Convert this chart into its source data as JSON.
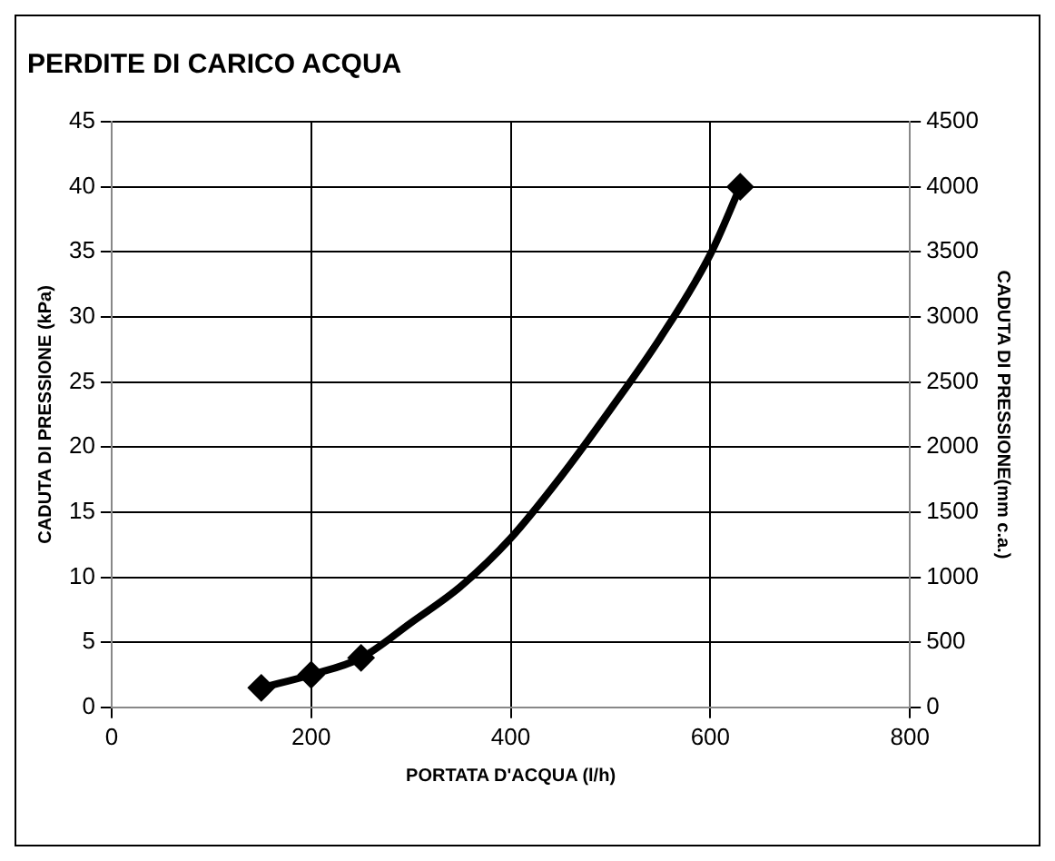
{
  "chart_data": {
    "type": "line",
    "title": "PERDITE DI CARICO ACQUA",
    "xlabel": "PORTATA D'ACQUA (l/h)",
    "ylabel": "CADUTA DI PRESSIONE (kPa)",
    "y2label": "CADUTA DI PRESSIONE(mm c.a.)",
    "xlim": [
      0,
      800
    ],
    "xticks": [
      0,
      200,
      400,
      600,
      800
    ],
    "ylim": [
      0,
      45
    ],
    "yticks": [
      0,
      5,
      10,
      15,
      20,
      25,
      30,
      35,
      40,
      45
    ],
    "y2lim": [
      0,
      4500
    ],
    "y2ticks": [
      0,
      500,
      1000,
      1500,
      2000,
      2500,
      3000,
      3500,
      4000,
      4500
    ],
    "grid": true,
    "legend": false,
    "series": [
      {
        "type": "line",
        "color": "#000000",
        "marker": "none",
        "line_style": "solid",
        "x": [
          150,
          200,
          250,
          300,
          350,
          400,
          450,
          500,
          550,
          600,
          630
        ],
        "values": [
          1.5,
          2.5,
          3.8,
          6.5,
          9.3,
          13,
          17.7,
          22.9,
          28.4,
          34.8,
          40
        ]
      },
      {
        "type": "scatter",
        "color": "#000000",
        "marker": "diamond",
        "x": [
          150,
          200,
          250,
          630
        ],
        "values": [
          1.5,
          2.5,
          3.8,
          40
        ]
      }
    ]
  }
}
